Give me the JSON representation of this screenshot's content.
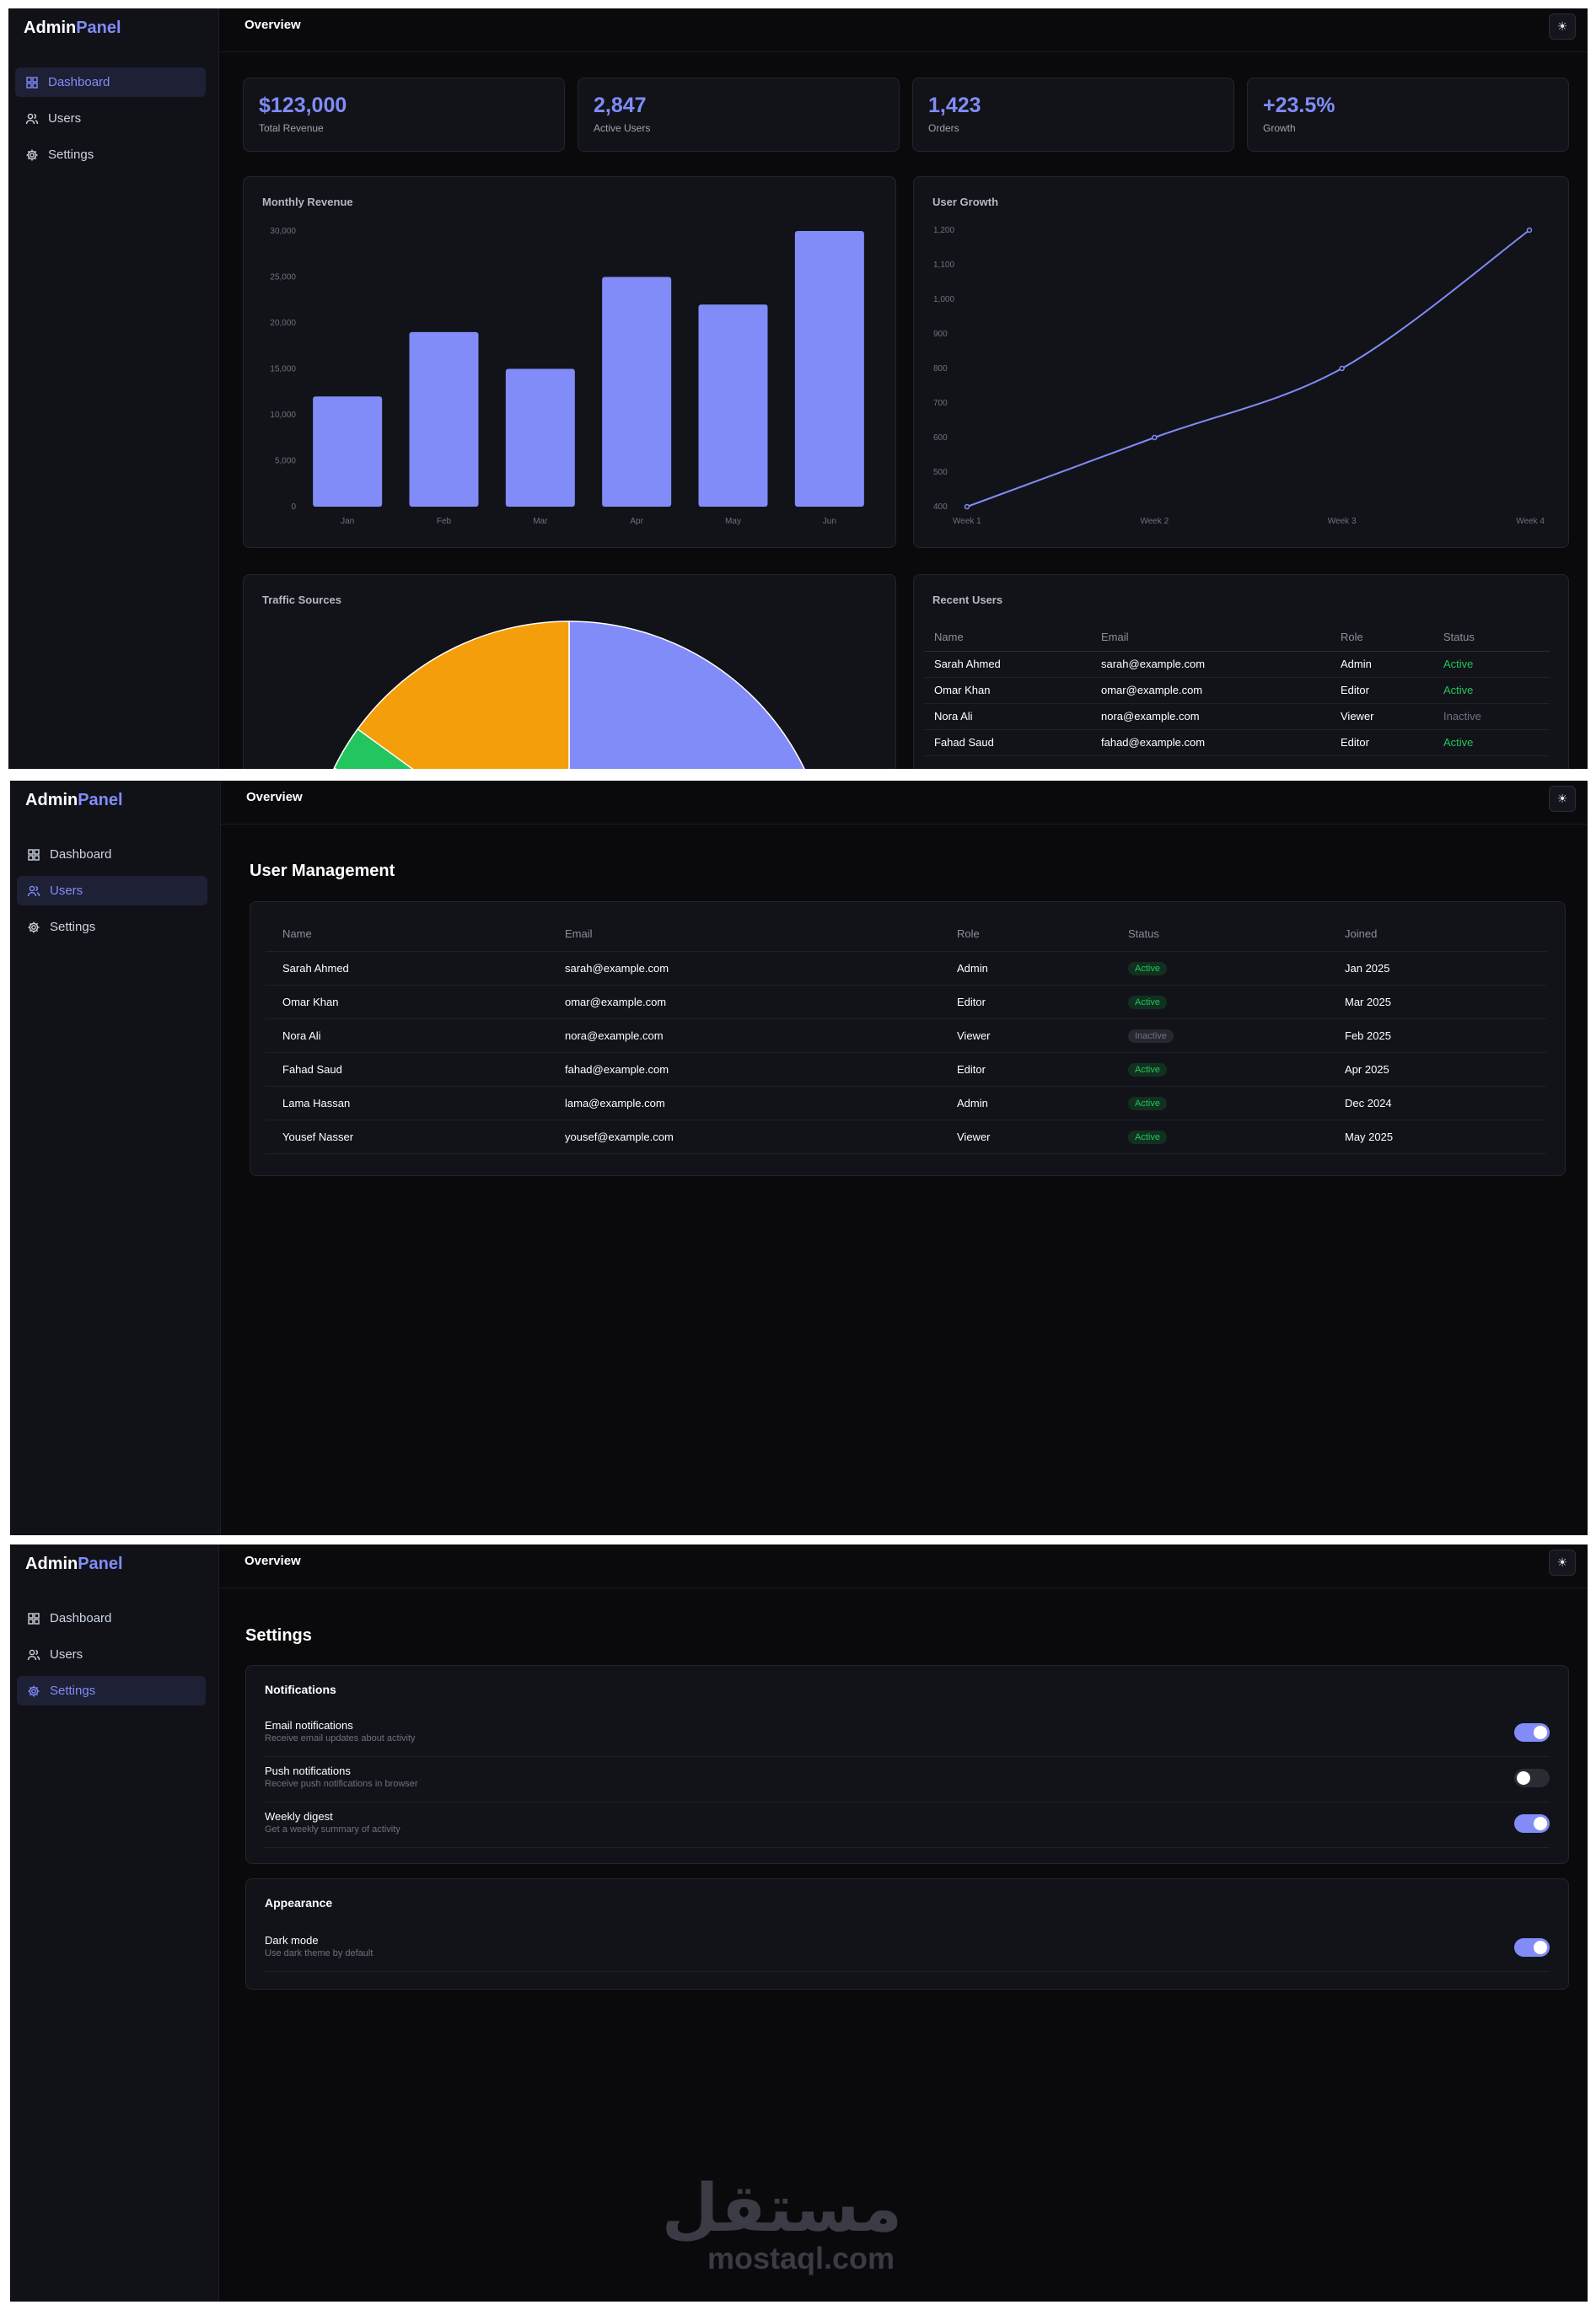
{
  "brand": {
    "part1": "Admin",
    "part2": "Panel"
  },
  "topbar": {
    "title": "Overview",
    "theme_icon": "☀"
  },
  "nav": [
    {
      "label": "Dashboard",
      "icon": "grid-icon"
    },
    {
      "label": "Users",
      "icon": "users-icon"
    },
    {
      "label": "Settings",
      "icon": "gear-icon"
    }
  ],
  "colors": {
    "accent": "#818cf8",
    "active_green": "#22c55e",
    "amber": "#f59e0b",
    "background": "#0a0a0d"
  },
  "dashboard": {
    "stats": [
      {
        "value": "$123,000",
        "label": "Total Revenue"
      },
      {
        "value": "2,847",
        "label": "Active Users"
      },
      {
        "value": "1,423",
        "label": "Orders"
      },
      {
        "value": "+23.5%",
        "label": "Growth"
      }
    ],
    "revenue_title": "Monthly Revenue",
    "growth_title": "User Growth",
    "traffic_title": "Traffic Sources",
    "recent_title": "Recent Users",
    "recent_headers": [
      "Name",
      "Email",
      "Role",
      "Status"
    ],
    "recent_rows": [
      [
        "Sarah Ahmed",
        "sarah@example.com",
        "Admin",
        "Active"
      ],
      [
        "Omar Khan",
        "omar@example.com",
        "Editor",
        "Active"
      ],
      [
        "Nora Ali",
        "nora@example.com",
        "Viewer",
        "Inactive"
      ],
      [
        "Fahad Saud",
        "fahad@example.com",
        "Editor",
        "Active"
      ]
    ]
  },
  "chart_data": [
    {
      "type": "bar",
      "title": "Monthly Revenue",
      "categories": [
        "Jan",
        "Feb",
        "Mar",
        "Apr",
        "May",
        "Jun"
      ],
      "values": [
        12000,
        19000,
        15000,
        25000,
        22000,
        30000
      ],
      "yticks": [
        "0",
        "5,000",
        "10,000",
        "15,000",
        "20,000",
        "25,000",
        "30,000"
      ],
      "ylim": [
        0,
        30000
      ],
      "color": "#818cf8"
    },
    {
      "type": "line",
      "title": "User Growth",
      "categories": [
        "Week 1",
        "Week 2",
        "Week 3",
        "Week 4"
      ],
      "values": [
        400,
        600,
        800,
        1200
      ],
      "yticks": [
        "400",
        "500",
        "600",
        "700",
        "800",
        "900",
        "1,000",
        "1,100",
        "1,200"
      ],
      "ylim": [
        400,
        1200
      ],
      "color": "#818cf8"
    },
    {
      "type": "pie",
      "title": "Traffic Sources",
      "slice_colors": [
        "#818cf8",
        "#22c55e",
        "#f59e0b"
      ],
      "note": "Chart partially cut off at bottom of screen; values not readable"
    }
  ],
  "users_page": {
    "heading": "User Management",
    "headers": [
      "Name",
      "Email",
      "Role",
      "Status",
      "Joined"
    ],
    "rows": [
      [
        "Sarah Ahmed",
        "sarah@example.com",
        "Admin",
        "Active",
        "Jan 2025"
      ],
      [
        "Omar Khan",
        "omar@example.com",
        "Editor",
        "Active",
        "Mar 2025"
      ],
      [
        "Nora Ali",
        "nora@example.com",
        "Viewer",
        "Inactive",
        "Feb 2025"
      ],
      [
        "Fahad Saud",
        "fahad@example.com",
        "Editor",
        "Active",
        "Apr 2025"
      ],
      [
        "Lama Hassan",
        "lama@example.com",
        "Admin",
        "Active",
        "Dec 2024"
      ],
      [
        "Yousef Nasser",
        "yousef@example.com",
        "Viewer",
        "Active",
        "May 2025"
      ]
    ]
  },
  "settings_page": {
    "heading": "Settings",
    "notifications": {
      "title": "Notifications",
      "items": [
        {
          "label": "Email notifications",
          "desc": "Receive email updates about activity",
          "on": true
        },
        {
          "label": "Push notifications",
          "desc": "Receive push notifications in browser",
          "on": false
        },
        {
          "label": "Weekly digest",
          "desc": "Get a weekly summary of activity",
          "on": true
        }
      ]
    },
    "appearance": {
      "title": "Appearance",
      "items": [
        {
          "label": "Dark mode",
          "desc": "Use dark theme by default",
          "on": true
        }
      ]
    }
  },
  "watermark": {
    "arabic": "مستقل",
    "latin": "mostaql.com"
  }
}
